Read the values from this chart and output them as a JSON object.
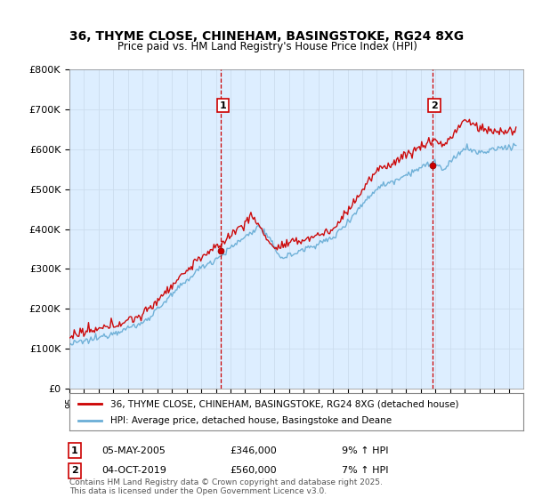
{
  "title": "36, THYME CLOSE, CHINEHAM, BASINGSTOKE, RG24 8XG",
  "subtitle": "Price paid vs. HM Land Registry's House Price Index (HPI)",
  "ylabel_ticks": [
    "£0",
    "£100K",
    "£200K",
    "£300K",
    "£400K",
    "£500K",
    "£600K",
    "£700K",
    "£800K"
  ],
  "ytick_values": [
    0,
    100000,
    200000,
    300000,
    400000,
    500000,
    600000,
    700000,
    800000
  ],
  "ylim": [
    0,
    800000
  ],
  "xlim_start": 1995.0,
  "xlim_end": 2026.0,
  "hpi_color": "#6aaed6",
  "price_color": "#cc0000",
  "plot_bg_color": "#ddeeff",
  "marker1_x": 2005.35,
  "marker1_y": 346000,
  "marker2_x": 2019.77,
  "marker2_y": 560000,
  "marker1_label": "1",
  "marker2_label": "2",
  "annotation1_date": "05-MAY-2005",
  "annotation1_price": "£346,000",
  "annotation1_hpi": "9% ↑ HPI",
  "annotation2_date": "04-OCT-2019",
  "annotation2_price": "£560,000",
  "annotation2_hpi": "7% ↑ HPI",
  "legend_label1": "36, THYME CLOSE, CHINEHAM, BASINGSTOKE, RG24 8XG (detached house)",
  "legend_label2": "HPI: Average price, detached house, Basingstoke and Deane",
  "footer": "Contains HM Land Registry data © Crown copyright and database right 2025.\nThis data is licensed under the Open Government Licence v3.0.",
  "bg_color": "#ffffff",
  "grid_color": "#ccddee",
  "vline_color": "#cc0000"
}
